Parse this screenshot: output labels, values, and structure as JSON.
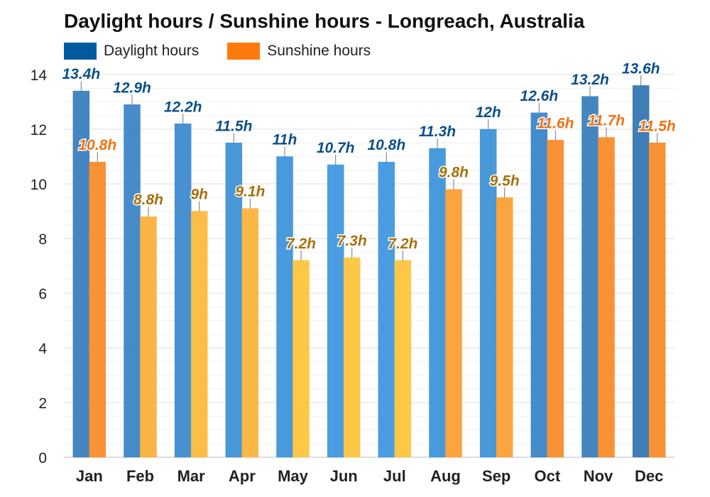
{
  "chart_data": {
    "type": "bar",
    "title": "Daylight hours / Sunshine hours - Longreach, Australia",
    "categories": [
      "Jan",
      "Feb",
      "Mar",
      "Apr",
      "May",
      "Jun",
      "Jul",
      "Aug",
      "Sep",
      "Oct",
      "Nov",
      "Dec"
    ],
    "series": [
      {
        "name": "Daylight hours",
        "values": [
          13.4,
          12.9,
          12.2,
          11.5,
          11,
          10.7,
          10.8,
          11.3,
          12,
          12.6,
          13.2,
          13.6
        ],
        "labels": [
          "13.4h",
          "12.9h",
          "12.2h",
          "11.5h",
          "11h",
          "10.7h",
          "10.8h",
          "11.3h",
          "12h",
          "12.6h",
          "13.2h",
          "13.6h"
        ],
        "colors": [
          "#3a7fbd",
          "#3d85c6",
          "#3d8ad0",
          "#3f92d6",
          "#3f95db",
          "#3f98de",
          "#3f98de",
          "#3f95db",
          "#3f92d6",
          "#3b86c8",
          "#3a7fbd",
          "#3677b2"
        ],
        "label_color": "#0b4f8a",
        "legend_color": "#005aa0"
      },
      {
        "name": "Sunshine hours",
        "values": [
          10.8,
          8.8,
          9,
          9.1,
          7.2,
          7.3,
          7.2,
          9.8,
          9.5,
          11.6,
          11.7,
          11.5
        ],
        "labels": [
          "10.8h",
          "8.8h",
          "9h",
          "9.1h",
          "7.2h",
          "7.3h",
          "7.2h",
          "9.8h",
          "9.5h",
          "11.6h",
          "11.7h",
          "11.5h"
        ],
        "colors": [
          "#f98b2a",
          "#fbb13a",
          "#fcba3c",
          "#fcb43a",
          "#fdc43e",
          "#fdc43e",
          "#fdc43e",
          "#fca034",
          "#fca034",
          "#f98b2a",
          "#f98b2a",
          "#f98b2a"
        ],
        "label_colors": [
          "#f07212",
          "#a8700c",
          "#a8700c",
          "#a8700c",
          "#a8700c",
          "#a8700c",
          "#a8700c",
          "#a8700c",
          "#a8700c",
          "#f07212",
          "#f07212",
          "#f07212"
        ],
        "legend_color": "#fe7a0d"
      }
    ],
    "ylim": [
      0,
      14
    ],
    "yticks": [
      0,
      2,
      4,
      6,
      8,
      10,
      12,
      14
    ],
    "grid": true,
    "legend_position": "top-left"
  }
}
